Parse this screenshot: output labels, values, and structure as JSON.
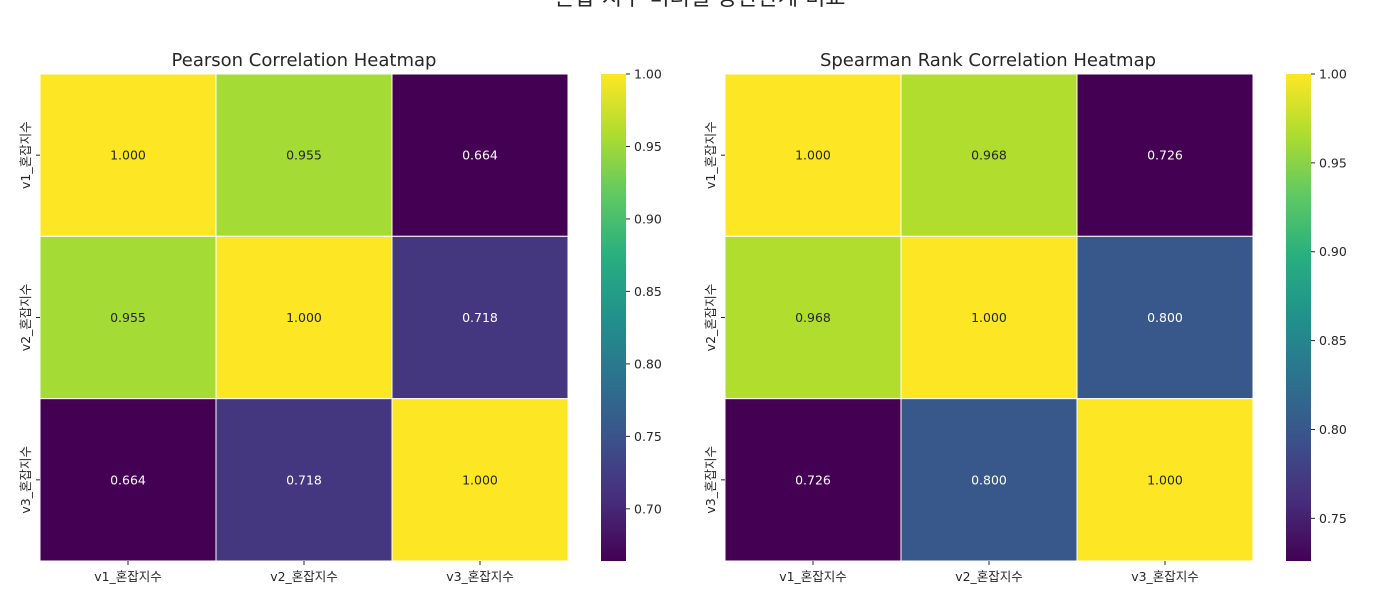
{
  "suptitle": "혼잡 지수 미터별 상관관계 비교",
  "colormap": "viridis",
  "chart_data": [
    {
      "type": "heatmap",
      "title": "Pearson Correlation Heatmap",
      "x_labels": [
        "v1_혼잡지수",
        "v2_혼잡지수",
        "v3_혼잡지수"
      ],
      "y_labels": [
        "v1_혼잡지수",
        "v2_혼잡지수",
        "v3_혼잡지수"
      ],
      "values": [
        [
          1.0,
          0.955,
          0.664
        ],
        [
          0.955,
          1.0,
          0.718
        ],
        [
          0.664,
          0.718,
          1.0
        ]
      ],
      "cell_labels": [
        [
          "1.000",
          "0.955",
          "0.664"
        ],
        [
          "0.955",
          "1.000",
          "0.718"
        ],
        [
          "0.664",
          "0.718",
          "1.000"
        ]
      ],
      "color_range": [
        0.664,
        1.0
      ],
      "colorbar_ticks": [
        0.7,
        0.75,
        0.8,
        0.85,
        0.9,
        0.95,
        1.0
      ],
      "colorbar_tick_labels": [
        "0.70",
        "0.75",
        "0.80",
        "0.85",
        "0.90",
        "0.95",
        "1.00"
      ]
    },
    {
      "type": "heatmap",
      "title": "Spearman Rank Correlation Heatmap",
      "x_labels": [
        "v1_혼잡지수",
        "v2_혼잡지수",
        "v3_혼잡지수"
      ],
      "y_labels": [
        "v1_혼잡지수",
        "v2_혼잡지수",
        "v3_혼잡지수"
      ],
      "values": [
        [
          1.0,
          0.968,
          0.726
        ],
        [
          0.968,
          1.0,
          0.8
        ],
        [
          0.726,
          0.8,
          1.0
        ]
      ],
      "cell_labels": [
        [
          "1.000",
          "0.968",
          "0.726"
        ],
        [
          "0.968",
          "1.000",
          "0.800"
        ],
        [
          "0.726",
          "0.800",
          "1.000"
        ]
      ],
      "color_range": [
        0.726,
        1.0
      ],
      "colorbar_ticks": [
        0.75,
        0.8,
        0.85,
        0.9,
        0.95,
        1.0
      ],
      "colorbar_tick_labels": [
        "0.75",
        "0.80",
        "0.85",
        "0.90",
        "0.95",
        "1.00"
      ]
    }
  ]
}
